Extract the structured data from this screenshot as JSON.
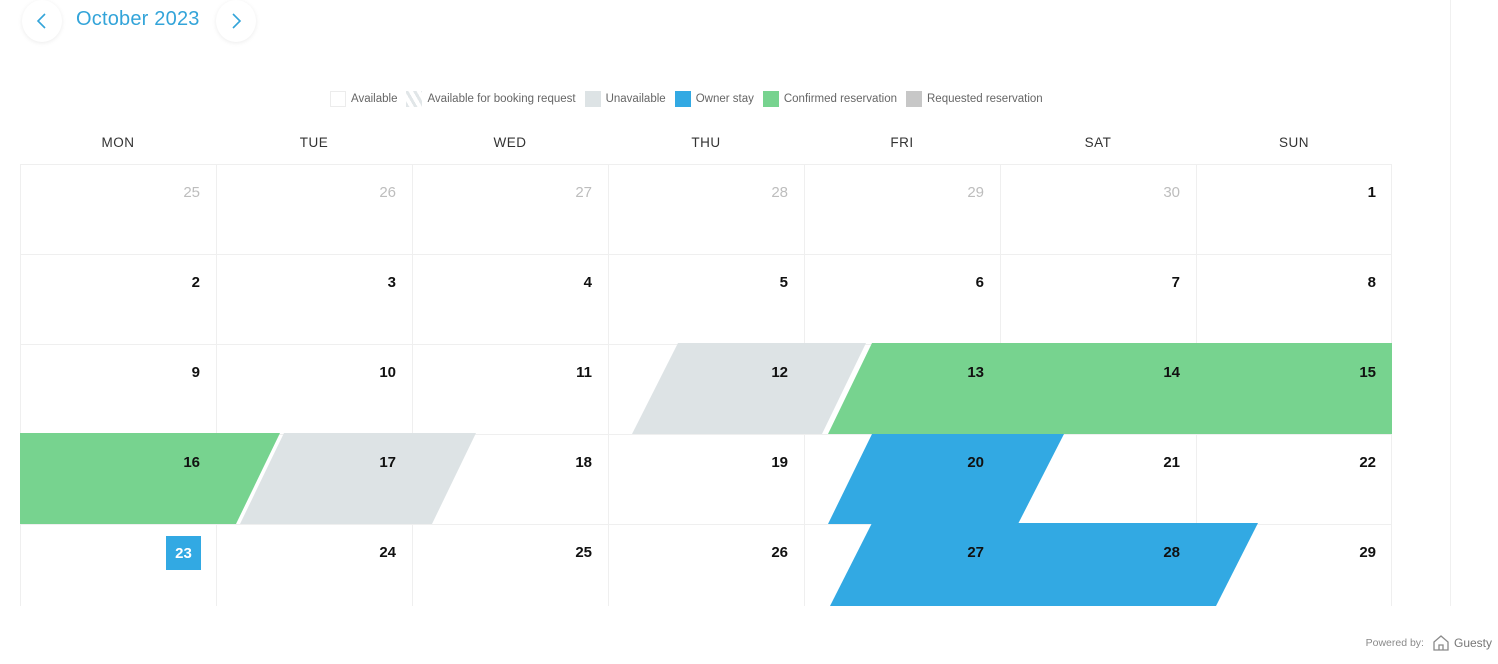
{
  "header": {
    "month_label": "October 2023",
    "prev_icon": "chevron-left-icon",
    "next_icon": "chevron-right-icon"
  },
  "legend": [
    {
      "key": "available",
      "label": "Available"
    },
    {
      "key": "request",
      "label": "Available for booking request"
    },
    {
      "key": "unavailable",
      "label": "Unavailable"
    },
    {
      "key": "owner",
      "label": "Owner stay"
    },
    {
      "key": "confirmed",
      "label": "Confirmed reservation"
    },
    {
      "key": "requested",
      "label": "Requested reservation"
    }
  ],
  "weekdays": [
    "MON",
    "TUE",
    "WED",
    "THU",
    "FRI",
    "SAT",
    "SUN"
  ],
  "weeks": [
    [
      {
        "d": "25",
        "muted": true
      },
      {
        "d": "26",
        "muted": true
      },
      {
        "d": "27",
        "muted": true
      },
      {
        "d": "28",
        "muted": true
      },
      {
        "d": "29",
        "muted": true
      },
      {
        "d": "30",
        "muted": true
      },
      {
        "d": "1"
      }
    ],
    [
      {
        "d": "2"
      },
      {
        "d": "3"
      },
      {
        "d": "4"
      },
      {
        "d": "5"
      },
      {
        "d": "6"
      },
      {
        "d": "7"
      },
      {
        "d": "8"
      }
    ],
    [
      {
        "d": "9"
      },
      {
        "d": "10"
      },
      {
        "d": "11"
      },
      {
        "d": "12"
      },
      {
        "d": "13"
      },
      {
        "d": "14"
      },
      {
        "d": "15"
      }
    ],
    [
      {
        "d": "16"
      },
      {
        "d": "17"
      },
      {
        "d": "18"
      },
      {
        "d": "19"
      },
      {
        "d": "20"
      },
      {
        "d": "21"
      },
      {
        "d": "22"
      }
    ],
    [
      {
        "d": "23",
        "today": true
      },
      {
        "d": "24"
      },
      {
        "d": "25"
      },
      {
        "d": "26"
      },
      {
        "d": "27"
      },
      {
        "d": "28"
      },
      {
        "d": "29"
      }
    ]
  ],
  "colors": {
    "accent": "#33a4d9",
    "owner_stay": "#32a9e3",
    "confirmed": "#77d38f",
    "unavailable": "#dde3e5",
    "requested": "#c7c7c7"
  },
  "footer": {
    "powered_by": "Powered by:",
    "brand": "Guesty",
    "logo_icon": "house-icon"
  }
}
